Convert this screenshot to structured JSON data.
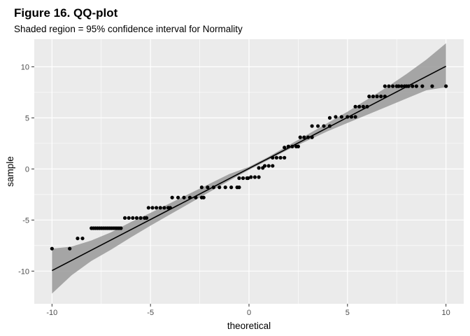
{
  "chart_data": {
    "type": "scatter",
    "title": "Figure 16. QQ-plot",
    "subtitle": "Shaded region = 95% confidence interval for Normality",
    "xlabel": "theoretical",
    "ylabel": "sample",
    "xlim": [
      -10.9,
      10.9
    ],
    "ylim": [
      -13.2,
      12.7
    ],
    "x_ticks": [
      -10,
      -5,
      0,
      5,
      10
    ],
    "y_ticks": [
      -10,
      -5,
      0,
      5,
      10
    ],
    "grid": true,
    "background": "#ebebeb",
    "grid_color": "#ffffff",
    "point_color": "#000000",
    "band_color": "#999999",
    "reference_line": {
      "slope": 1.0,
      "intercept": 0.05,
      "x_range": [
        -10,
        10
      ]
    },
    "confidence_band": {
      "x": [
        -10,
        -9,
        -8,
        -7,
        -6,
        -5,
        -4,
        -3,
        -2,
        -1,
        0,
        1,
        2,
        3,
        4,
        5,
        6,
        7,
        8,
        9,
        10
      ],
      "lower": [
        -12.2,
        -10.4,
        -9.0,
        -7.9,
        -6.7,
        -5.55,
        -4.45,
        -3.35,
        -2.25,
        -1.15,
        -0.1,
        0.9,
        1.9,
        2.8,
        3.7,
        4.5,
        5.3,
        6.1,
        6.9,
        7.7,
        8.0
      ],
      "upper": [
        -7.8,
        -7.6,
        -7.0,
        -6.2,
        -5.2,
        -4.3,
        -3.35,
        -2.4,
        -1.45,
        -0.5,
        0.2,
        1.2,
        2.3,
        3.4,
        4.5,
        5.6,
        6.8,
        8.0,
        9.3,
        10.7,
        12.3
      ]
    },
    "series": [
      {
        "points": [
          [
            -10.0,
            -7.8
          ],
          [
            -9.1,
            -7.8
          ],
          [
            -8.7,
            -6.8
          ],
          [
            -8.45,
            -6.8
          ],
          [
            -8.0,
            -5.8
          ],
          [
            -7.9,
            -5.8
          ],
          [
            -7.8,
            -5.8
          ],
          [
            -7.7,
            -5.8
          ],
          [
            -7.6,
            -5.8
          ],
          [
            -7.5,
            -5.8
          ],
          [
            -7.4,
            -5.8
          ],
          [
            -7.3,
            -5.8
          ],
          [
            -7.2,
            -5.8
          ],
          [
            -7.1,
            -5.8
          ],
          [
            -7.0,
            -5.8
          ],
          [
            -6.9,
            -5.8
          ],
          [
            -6.8,
            -5.8
          ],
          [
            -6.7,
            -5.8
          ],
          [
            -6.6,
            -5.8
          ],
          [
            -6.5,
            -5.8
          ],
          [
            -6.3,
            -4.8
          ],
          [
            -6.1,
            -4.8
          ],
          [
            -5.9,
            -4.8
          ],
          [
            -5.7,
            -4.8
          ],
          [
            -5.5,
            -4.8
          ],
          [
            -5.3,
            -4.8
          ],
          [
            -5.2,
            -4.8
          ],
          [
            -5.1,
            -3.8
          ],
          [
            -4.9,
            -3.8
          ],
          [
            -4.7,
            -3.8
          ],
          [
            -4.5,
            -3.8
          ],
          [
            -4.3,
            -3.8
          ],
          [
            -4.1,
            -3.8
          ],
          [
            -4.0,
            -3.8
          ],
          [
            -3.9,
            -2.8
          ],
          [
            -3.6,
            -2.8
          ],
          [
            -3.3,
            -2.8
          ],
          [
            -3.0,
            -2.8
          ],
          [
            -2.7,
            -2.8
          ],
          [
            -2.4,
            -2.8
          ],
          [
            -2.3,
            -2.8
          ],
          [
            -2.4,
            -1.8
          ],
          [
            -2.1,
            -1.8
          ],
          [
            -1.8,
            -1.8
          ],
          [
            -1.5,
            -1.8
          ],
          [
            -1.2,
            -1.8
          ],
          [
            -0.9,
            -1.8
          ],
          [
            -0.6,
            -1.8
          ],
          [
            -0.5,
            -1.8
          ],
          [
            -0.5,
            -0.9
          ],
          [
            -0.3,
            -0.9
          ],
          [
            -0.1,
            -0.9
          ],
          [
            -0.05,
            -0.9
          ],
          [
            0.1,
            -0.8
          ],
          [
            0.3,
            -0.8
          ],
          [
            0.5,
            -0.8
          ],
          [
            0.5,
            0.1
          ],
          [
            0.7,
            0.1
          ],
          [
            0.8,
            0.3
          ],
          [
            1.0,
            0.3
          ],
          [
            1.2,
            0.3
          ],
          [
            1.2,
            1.1
          ],
          [
            1.4,
            1.1
          ],
          [
            1.6,
            1.1
          ],
          [
            1.8,
            1.1
          ],
          [
            1.8,
            2.1
          ],
          [
            2.0,
            2.2
          ],
          [
            2.2,
            2.2
          ],
          [
            2.4,
            2.2
          ],
          [
            2.5,
            2.2
          ],
          [
            2.6,
            3.1
          ],
          [
            2.8,
            3.1
          ],
          [
            3.0,
            3.1
          ],
          [
            3.2,
            3.1
          ],
          [
            3.2,
            4.2
          ],
          [
            3.5,
            4.2
          ],
          [
            3.8,
            4.2
          ],
          [
            4.1,
            4.2
          ],
          [
            4.1,
            5.0
          ],
          [
            4.4,
            5.1
          ],
          [
            4.7,
            5.1
          ],
          [
            5.0,
            5.1
          ],
          [
            5.2,
            5.1
          ],
          [
            5.4,
            5.1
          ],
          [
            5.4,
            6.1
          ],
          [
            5.6,
            6.1
          ],
          [
            5.8,
            6.1
          ],
          [
            6.0,
            6.1
          ],
          [
            6.1,
            7.1
          ],
          [
            6.3,
            7.1
          ],
          [
            6.5,
            7.1
          ],
          [
            6.7,
            7.1
          ],
          [
            6.9,
            7.1
          ],
          [
            6.9,
            8.1
          ],
          [
            7.1,
            8.1
          ],
          [
            7.3,
            8.1
          ],
          [
            7.5,
            8.1
          ],
          [
            7.6,
            8.1
          ],
          [
            7.75,
            8.1
          ],
          [
            7.9,
            8.1
          ],
          [
            8.0,
            8.1
          ],
          [
            8.1,
            8.1
          ],
          [
            8.3,
            8.1
          ],
          [
            8.5,
            8.1
          ],
          [
            8.8,
            8.1
          ],
          [
            9.3,
            8.1
          ],
          [
            10.0,
            8.1
          ]
        ]
      }
    ]
  }
}
